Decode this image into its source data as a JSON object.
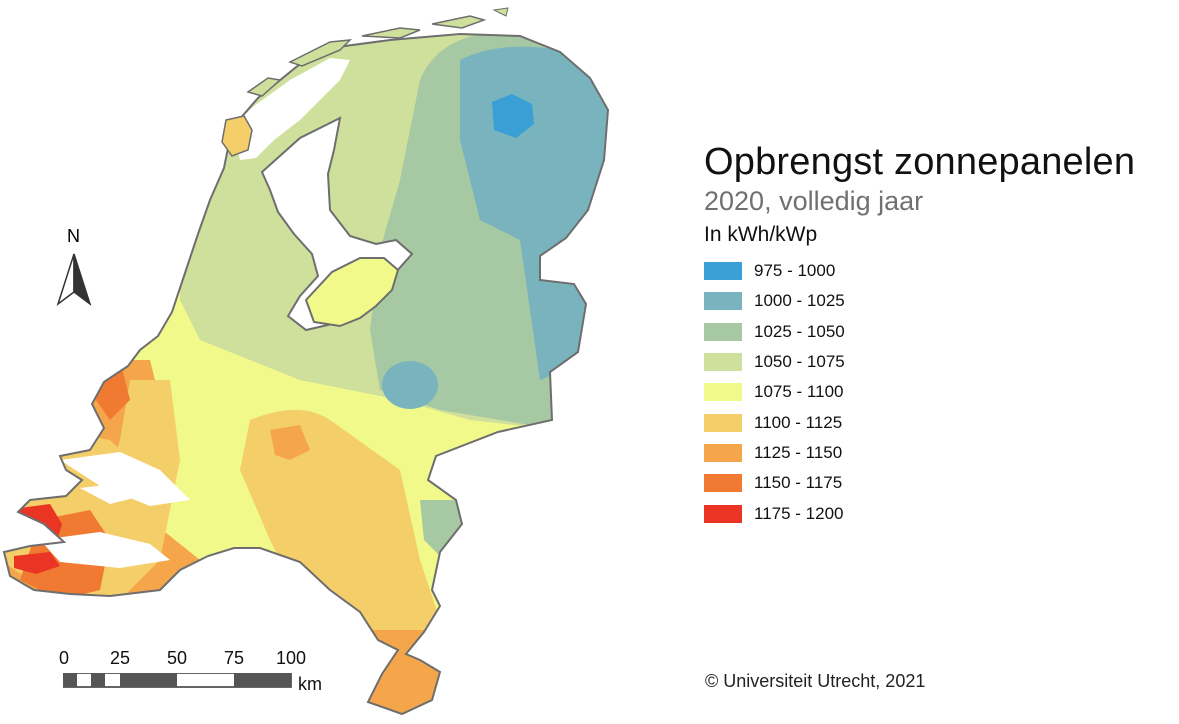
{
  "title": "Opbrengst zonnepanelen",
  "subtitle": "2020, volledig jaar",
  "unit": "In kWh/kWp",
  "legend": [
    {
      "label": "975 - 1000",
      "color": "#3a9fd5"
    },
    {
      "label": "1000 - 1025",
      "color": "#79b4be"
    },
    {
      "label": "1025 - 1050",
      "color": "#a6c8a2"
    },
    {
      "label": "1050 - 1075",
      "color": "#cfe09c"
    },
    {
      "label": "1075 - 1100",
      "color": "#f0f98a"
    },
    {
      "label": "1100 - 1125",
      "color": "#f4ce68"
    },
    {
      "label": "1125 - 1150",
      "color": "#f5a64b"
    },
    {
      "label": "1150 - 1175",
      "color": "#f07a32"
    },
    {
      "label": "1175 - 1200",
      "color": "#ea3424"
    }
  ],
  "north_arrow": {
    "letter": "N",
    "icon": "north-arrow-icon"
  },
  "scale_bar": {
    "ticks": [
      "0",
      "25",
      "50",
      "75",
      "100"
    ],
    "unit": "km"
  },
  "credit": "© Universiteit Utrecht, 2021",
  "colors": {
    "border": "#6e6e6e",
    "water": "#ffffff"
  }
}
